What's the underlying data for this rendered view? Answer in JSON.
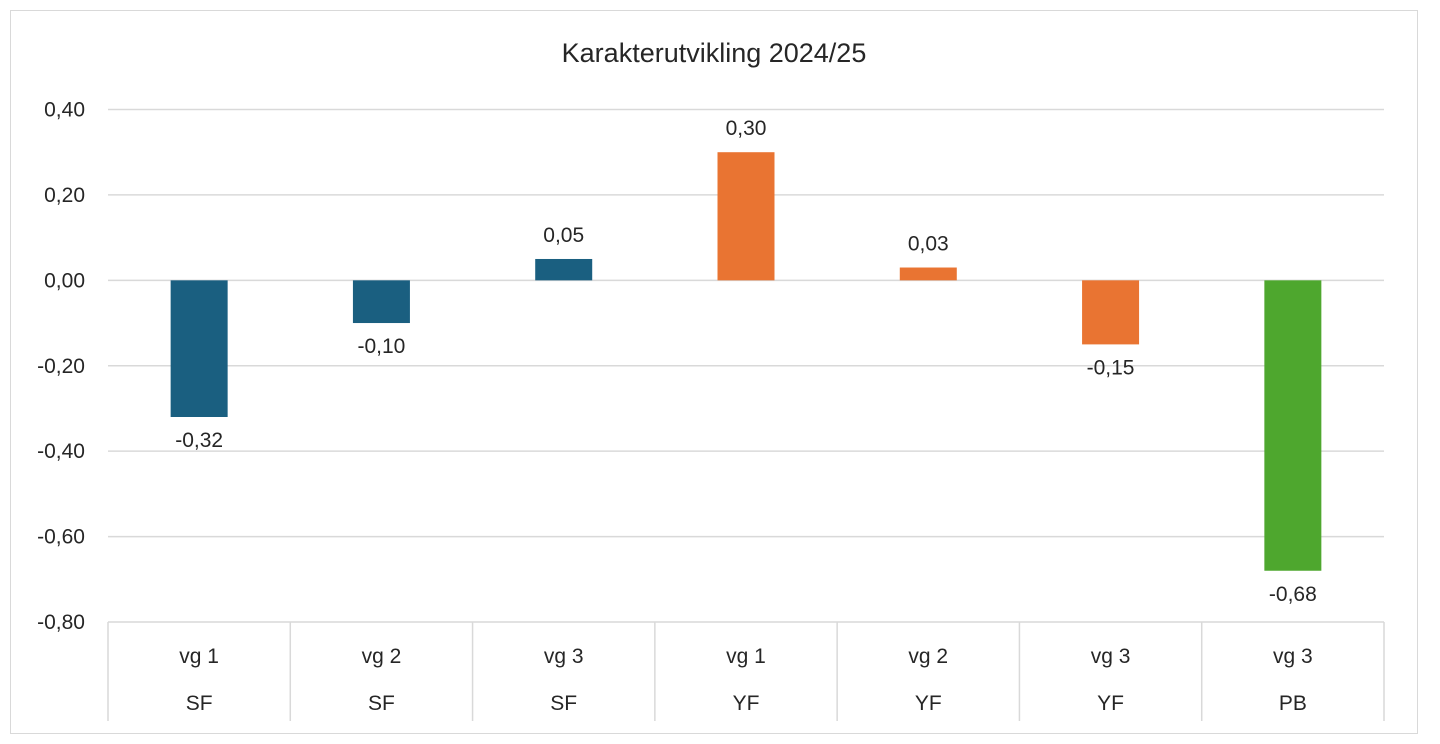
{
  "chart_data": {
    "type": "bar",
    "title": "Karakterutvikling 2024/25",
    "xlabel": "",
    "ylabel": "",
    "ylim": [
      -0.8,
      0.4
    ],
    "y_ticks": [
      "0,40",
      "0,20",
      "0,00",
      "-0,20",
      "-0,40",
      "-0,60",
      "-0,80"
    ],
    "y_tick_values": [
      0.4,
      0.2,
      0.0,
      -0.2,
      -0.4,
      -0.6,
      -0.8
    ],
    "grid": true,
    "legend": "none",
    "categories": [
      {
        "level": "vg 1",
        "group": "SF"
      },
      {
        "level": "vg 2",
        "group": "SF"
      },
      {
        "level": "vg 3",
        "group": "SF"
      },
      {
        "level": "vg 1",
        "group": "YF"
      },
      {
        "level": "vg 2",
        "group": "YF"
      },
      {
        "level": "vg 3",
        "group": "YF"
      },
      {
        "level": "vg 3",
        "group": "PB"
      }
    ],
    "values": [
      -0.32,
      -0.1,
      0.05,
      0.3,
      0.03,
      -0.15,
      -0.68
    ],
    "data_labels": [
      "-0,32",
      "-0,10",
      "0,05",
      "0,30",
      "0,03",
      "-0,15",
      "-0,68"
    ],
    "colors": {
      "SF": "#1a5f80",
      "YF": "#e97432",
      "PB": "#4ea72e"
    }
  }
}
